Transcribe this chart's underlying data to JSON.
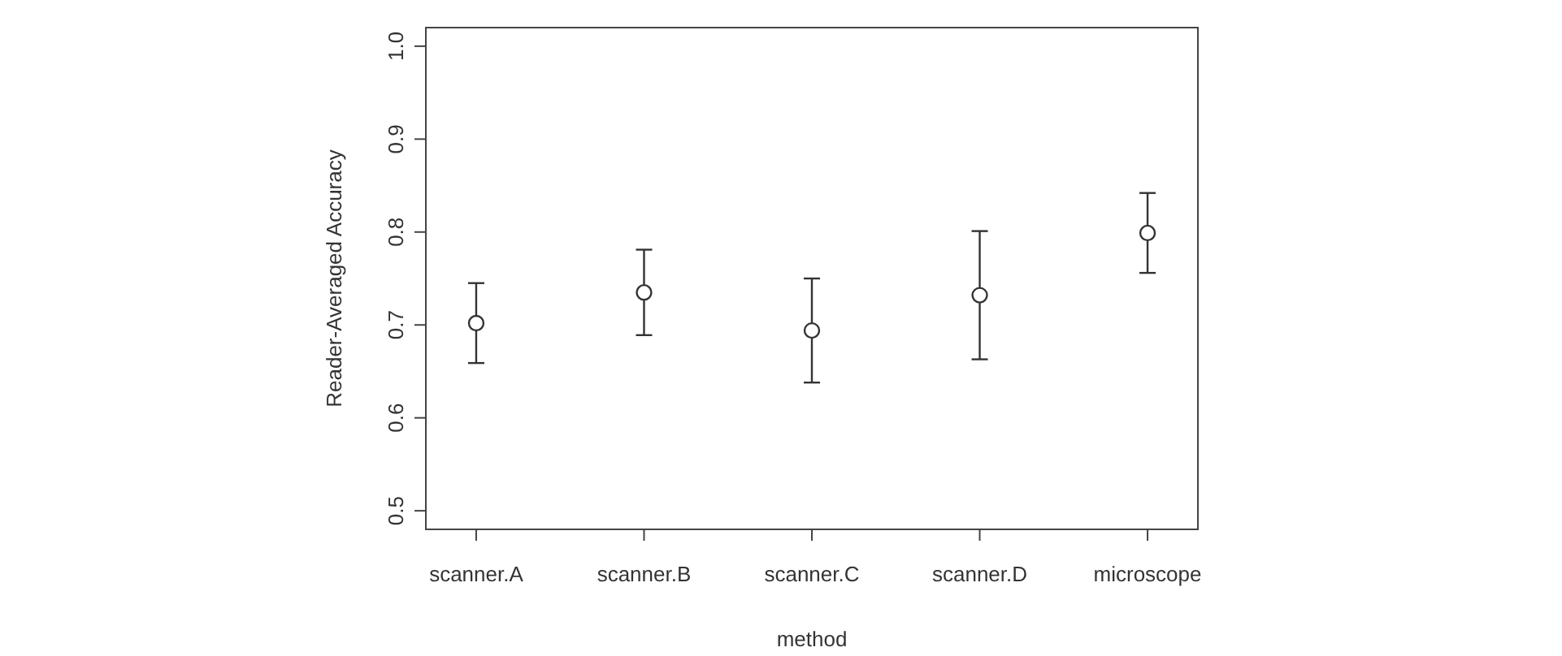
{
  "chart_data": {
    "type": "scatter",
    "xlabel": "method",
    "ylabel": "Reader-Averaged Accuracy",
    "categories": [
      "scanner.A",
      "scanner.B",
      "scanner.C",
      "scanner.D",
      "microscope"
    ],
    "values": [
      0.702,
      0.735,
      0.694,
      0.732,
      0.799
    ],
    "errors": [
      [
        0.659,
        0.745
      ],
      [
        0.689,
        0.781
      ],
      [
        0.638,
        0.75
      ],
      [
        0.663,
        0.801
      ],
      [
        0.756,
        0.842
      ]
    ],
    "color": "#333333",
    "marker": "circle",
    "ylim": [
      0.48,
      1.02
    ],
    "yticks": [
      0.5,
      0.6,
      0.7,
      0.8,
      0.9,
      {
        "value": 1,
        "label": "1.0"
      }
    ],
    "grid": false
  }
}
